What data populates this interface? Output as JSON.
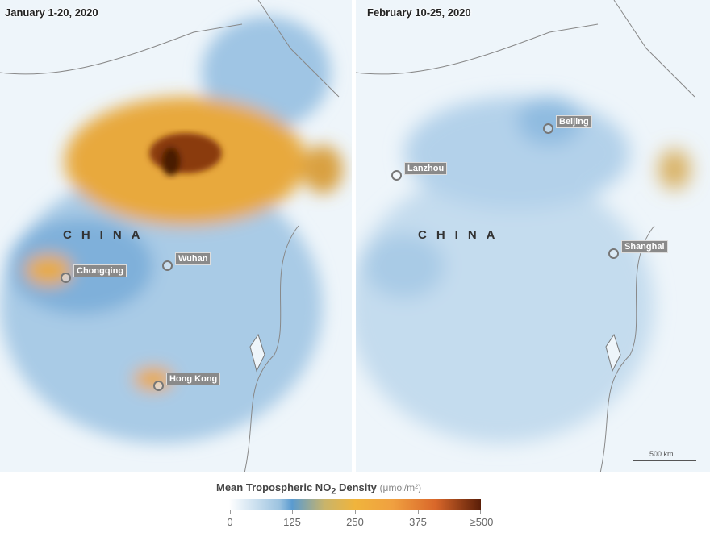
{
  "panels": [
    {
      "title": "January 1-20, 2020",
      "country_label": "CHINA",
      "cities": [
        "Chongqing",
        "Wuhan",
        "Hong Kong"
      ]
    },
    {
      "title": "February 10-25, 2020",
      "country_label": "CHINA",
      "cities": [
        "Beijing",
        "Lanzhou",
        "Shanghai"
      ]
    }
  ],
  "legend": {
    "title": "Mean Tropospheric NO",
    "subscript": "2",
    "title_rest": " Density",
    "unit": "(μmol/m²)",
    "ticks": [
      "0",
      "125",
      "250",
      "375",
      "≥500"
    ],
    "colors": [
      "#ffffff",
      "#5a9bd0",
      "#f0b43c",
      "#d9672a",
      "#5a1e08"
    ]
  },
  "scale_bar": "500 km"
}
